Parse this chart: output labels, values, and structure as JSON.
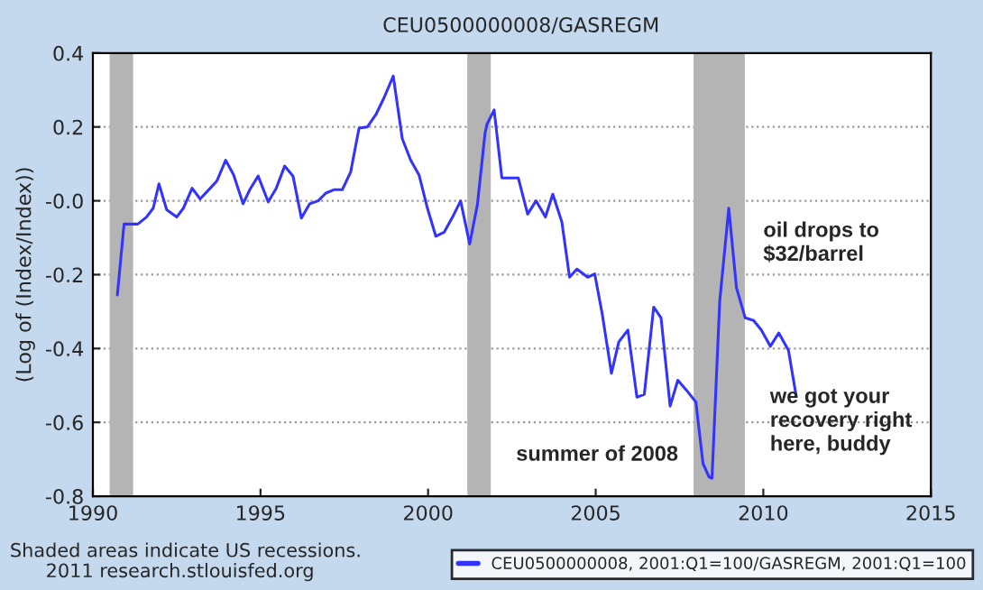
{
  "chart_data": {
    "type": "line",
    "title": "CEU0500000008/GASREGM",
    "ylabel": "(Log of (Index/Index))",
    "xlim": [
      1990,
      2015
    ],
    "xticks": [
      1990,
      1995,
      2000,
      2005,
      2010,
      2015
    ],
    "ylim": [
      -0.8,
      0.4
    ],
    "yticks": [
      {
        "value": -0.8,
        "label": "-0.8"
      },
      {
        "value": -0.6,
        "label": "-0.6"
      },
      {
        "value": -0.4,
        "label": "-0.4"
      },
      {
        "value": -0.2,
        "label": "-0.2"
      },
      {
        "value": 0,
        "label": "-0.0"
      },
      {
        "value": 0.2,
        "label": "0.2"
      },
      {
        "value": 0.4,
        "label": "0.4"
      }
    ],
    "grid": "y",
    "legend": "bottom right",
    "marker": "none",
    "line_style": "solid",
    "series": [
      {
        "name": "CEU0500000008, 2001:Q1=100/GASREGM, 2001:Q1=100",
        "color": "#3333ff",
        "x": [
          1990.73,
          1990.93,
          1991.34,
          1991.6,
          1991.8,
          1991.97,
          1992.2,
          1992.5,
          1992.7,
          1992.96,
          1993.2,
          1993.5,
          1993.7,
          1993.96,
          1994.2,
          1994.48,
          1994.68,
          1994.93,
          1995.23,
          1995.47,
          1995.72,
          1995.97,
          1996.22,
          1996.47,
          1996.72,
          1996.95,
          1997.19,
          1997.44,
          1997.69,
          1997.94,
          1998.19,
          1998.44,
          1998.69,
          1998.96,
          1999.23,
          1999.48,
          1999.73,
          1999.98,
          2000.23,
          2000.48,
          2000.73,
          2000.97,
          2001.24,
          2001.47,
          2001.7,
          2001.76,
          2001.97,
          2002.2,
          2002.69,
          2002.97,
          2003.22,
          2003.5,
          2003.72,
          2003.99,
          2004.22,
          2004.44,
          2004.76,
          2004.97,
          2005.19,
          2005.47,
          2005.69,
          2005.96,
          2006.23,
          2006.45,
          2006.73,
          2006.95,
          2007.22,
          2007.45,
          2007.7,
          2007.99,
          2008.2,
          2008.38,
          2008.47,
          2008.7,
          2008.97,
          2009.2,
          2009.46,
          2009.71,
          2009.94,
          2010.21,
          2010.46,
          2010.75,
          2010.98
        ],
        "values": [
          -0.255,
          -0.063,
          -0.063,
          -0.044,
          -0.02,
          0.046,
          -0.024,
          -0.044,
          -0.02,
          0.034,
          0.005,
          0.034,
          0.054,
          0.11,
          0.07,
          -0.008,
          0.03,
          0.067,
          -0.003,
          0.034,
          0.094,
          0.067,
          -0.047,
          -0.008,
          0,
          0.021,
          0.03,
          0.03,
          0.078,
          0.197,
          0.2,
          0.233,
          0.28,
          0.338,
          0.168,
          0.11,
          0.07,
          -0.02,
          -0.096,
          -0.085,
          -0.044,
          0,
          -0.117,
          -0.011,
          0.184,
          0.208,
          0.246,
          0.062,
          0.062,
          -0.036,
          0,
          -0.044,
          0.018,
          -0.057,
          -0.207,
          -0.185,
          -0.207,
          -0.198,
          -0.304,
          -0.467,
          -0.382,
          -0.35,
          -0.532,
          -0.524,
          -0.288,
          -0.317,
          -0.556,
          -0.486,
          -0.512,
          -0.545,
          -0.711,
          -0.748,
          -0.751,
          -0.272,
          -0.02,
          -0.236,
          -0.317,
          -0.324,
          -0.35,
          -0.394,
          -0.358,
          -0.405,
          -0.528
        ]
      }
    ],
    "bands": [
      {
        "axis": "x",
        "from": 1990.5,
        "to": 1991.2,
        "color": "#b4b4b4"
      },
      {
        "axis": "x",
        "from": 2001.17,
        "to": 2001.87,
        "color": "#b4b4b4"
      },
      {
        "axis": "x",
        "from": 2007.92,
        "to": 2009.45,
        "color": "#b4b4b4"
      }
    ],
    "annotations": [
      "oil drops to\n$32/barrel",
      "summer of 2008",
      "we got your\nrecovery right\nhere, buddy",
      "Shaded areas indicate US recessions.\n      2011 research.stlouisfed.org"
    ]
  }
}
